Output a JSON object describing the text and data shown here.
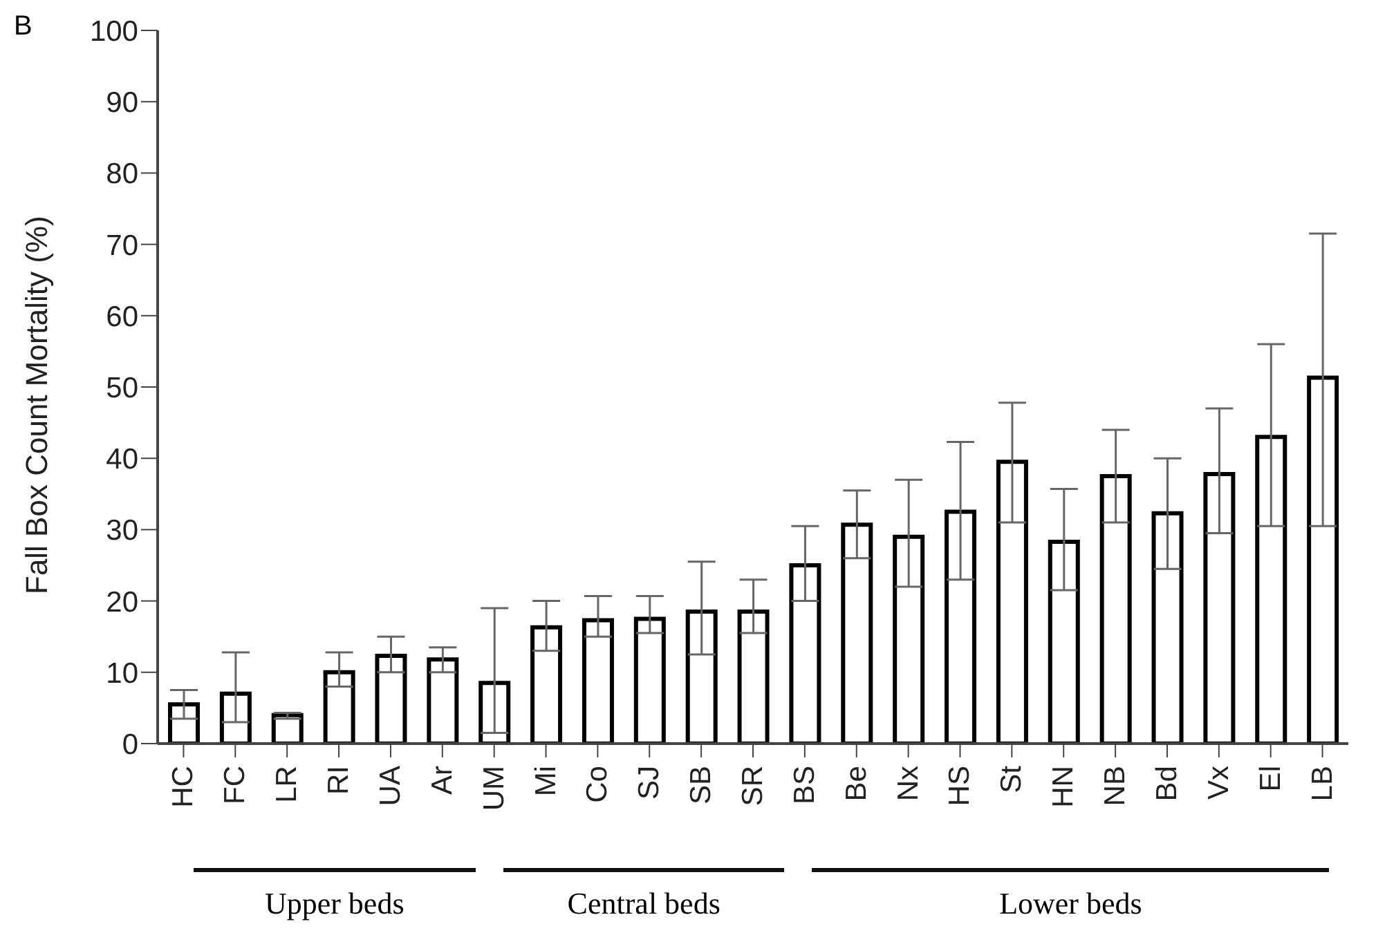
{
  "chart_data": {
    "type": "bar",
    "ylabel": "Fall Box Count Mortality (%)",
    "categories": [
      "HC",
      "FC",
      "LR",
      "RI",
      "UA",
      "Ar",
      "UM",
      "Mi",
      "Co",
      "SJ",
      "SB",
      "SR",
      "BS",
      "Be",
      "Nx",
      "HS",
      "St",
      "HN",
      "NB",
      "Bd",
      "Vx",
      "El",
      "LB"
    ],
    "values": [
      5.5,
      7,
      4,
      10,
      12.3,
      11.8,
      8.5,
      16.3,
      17.3,
      17.5,
      18.5,
      18.5,
      25,
      30.7,
      29,
      32.5,
      39.5,
      28.3,
      37.5,
      32.3,
      37.8,
      43,
      51.3
    ],
    "errors": [
      [
        3.5,
        7.5
      ],
      [
        3,
        12.8
      ],
      [
        3.5,
        4.3
      ],
      [
        8,
        12.8
      ],
      [
        10,
        15
      ],
      [
        10,
        13.5
      ],
      [
        1.5,
        19
      ],
      [
        13,
        20
      ],
      [
        15,
        20.7
      ],
      [
        15.5,
        20.7
      ],
      [
        12.5,
        25.5
      ],
      [
        15.5,
        23
      ],
      [
        20,
        30.5
      ],
      [
        26,
        35.5
      ],
      [
        22,
        37
      ],
      [
        23,
        42.3
      ],
      [
        31,
        47.8
      ],
      [
        21.5,
        35.7
      ],
      [
        31,
        44
      ],
      [
        24.5,
        40
      ],
      [
        29.5,
        47
      ],
      [
        30.5,
        56
      ],
      [
        30.5,
        71.5
      ]
    ],
    "color": "#ffffff",
    "ylim": [
      0,
      100
    ],
    "yticks": [
      0,
      10,
      20,
      30,
      40,
      50,
      60,
      70,
      80,
      90,
      100
    ],
    "grid": false,
    "legend": false,
    "annotations": [
      "B",
      "Upper beds",
      "Central beds",
      "Lower beds"
    ]
  }
}
